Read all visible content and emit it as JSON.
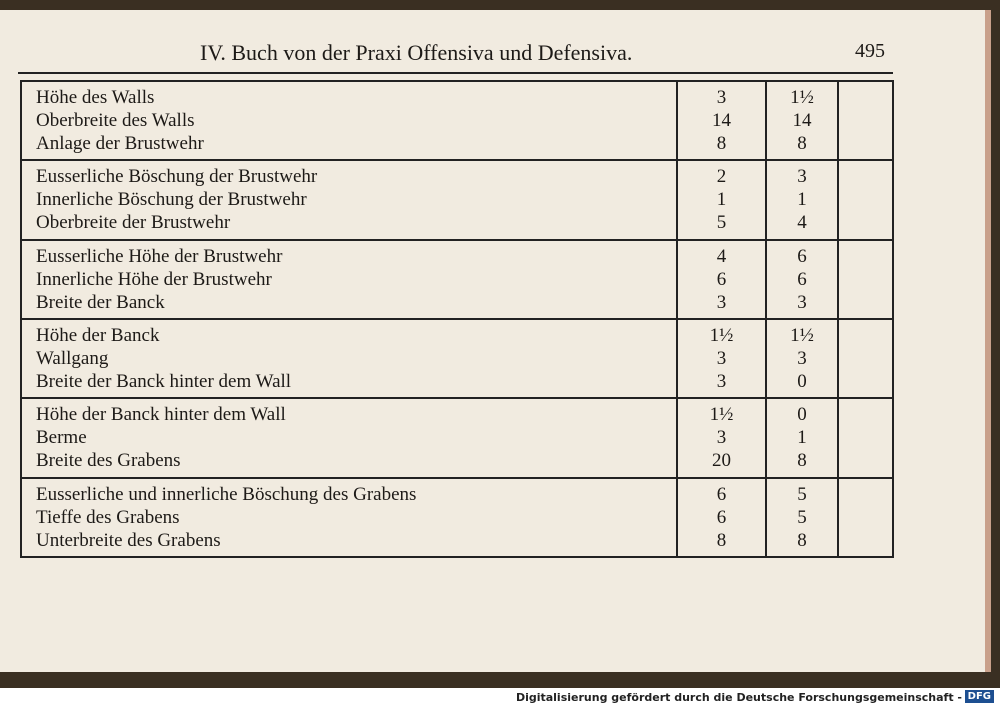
{
  "header": {
    "title": "IV. Buch von der Praxi Offensiva und Defensiva.",
    "page_number": "495"
  },
  "table": {
    "groups": [
      [
        [
          "Höhe des Walls",
          "3",
          "1½"
        ],
        [
          "Oberbreite des Walls",
          "14",
          "14"
        ],
        [
          "Anlage der Brustwehr",
          "8",
          "8"
        ]
      ],
      [
        [
          "Eusserliche Böschung der Brustwehr",
          "2",
          "3"
        ],
        [
          "Innerliche Böschung der Brustwehr",
          "1",
          "1"
        ],
        [
          "Oberbreite der Brustwehr",
          "5",
          "4"
        ]
      ],
      [
        [
          "Eusserliche Höhe der Brustwehr",
          "4",
          "6"
        ],
        [
          "Innerliche Höhe der Brustwehr",
          "6",
          "6"
        ],
        [
          "Breite der Banck",
          "3",
          "3"
        ]
      ],
      [
        [
          "Höhe der Banck",
          "1½",
          "1½"
        ],
        [
          "Wallgang",
          "3",
          "3"
        ],
        [
          "Breite der Banck hinter dem Wall",
          "3",
          "0"
        ]
      ],
      [
        [
          "Höhe der Banck hinter dem Wall",
          "1½",
          "0"
        ],
        [
          "Berme",
          "3",
          "1"
        ],
        [
          "Breite des Grabens",
          "20",
          "8"
        ]
      ],
      [
        [
          "Eusserliche und innerliche Böschung des Grabens",
          "6",
          "5"
        ],
        [
          "Tieffe des Grabens",
          "6",
          "5"
        ],
        [
          "Unterbreite des Grabens",
          "8",
          "8"
        ]
      ]
    ]
  },
  "footer": {
    "credit": "Digitalisierung gefördert durch die Deutsche Forschungsgemeinschaft -",
    "logo": "DFG"
  }
}
